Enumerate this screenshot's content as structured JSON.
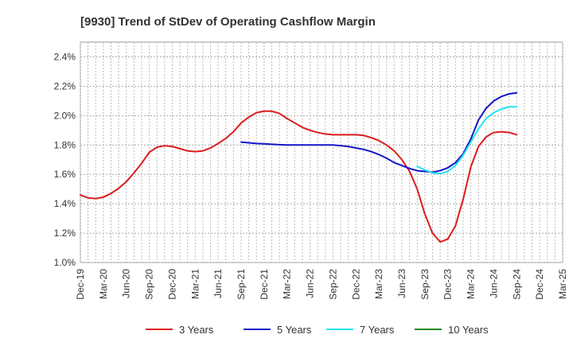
{
  "chart_data": {
    "type": "line",
    "title": "[9930]  Trend of StDev of Operating Cashflow Margin",
    "xlabel": "",
    "ylabel": "",
    "x_ticks": [
      "Dec-19",
      "Mar-20",
      "Jun-20",
      "Sep-20",
      "Dec-20",
      "Mar-21",
      "Jun-21",
      "Sep-21",
      "Dec-21",
      "Mar-22",
      "Jun-22",
      "Sep-22",
      "Dec-22",
      "Mar-23",
      "Jun-23",
      "Sep-23",
      "Dec-23",
      "Mar-24",
      "Jun-24",
      "Sep-24",
      "Dec-24",
      "Mar-25"
    ],
    "ylim": [
      1.0,
      2.5
    ],
    "y_ticks": [
      1.0,
      1.2,
      1.4,
      1.6,
      1.8,
      2.0,
      2.2,
      2.4
    ],
    "y_tick_labels": [
      "1.0%",
      "1.2%",
      "1.4%",
      "1.6%",
      "1.8%",
      "2.0%",
      "2.2%",
      "2.4%"
    ],
    "grid": true,
    "legend_position": "bottom",
    "series": [
      {
        "name": "3 Years",
        "color": "#dd1c1c",
        "x": [
          "2019-12",
          "2020-01",
          "2020-02",
          "2020-03",
          "2020-04",
          "2020-05",
          "2020-06",
          "2020-07",
          "2020-08",
          "2020-09",
          "2020-10",
          "2020-11",
          "2020-12",
          "2021-01",
          "2021-02",
          "2021-03",
          "2021-04",
          "2021-05",
          "2021-06",
          "2021-07",
          "2021-08",
          "2021-09",
          "2021-10",
          "2021-11",
          "2021-12",
          "2022-01",
          "2022-02",
          "2022-03",
          "2022-04",
          "2022-05",
          "2022-06",
          "2022-07",
          "2022-08",
          "2022-09",
          "2022-10",
          "2022-11",
          "2022-12",
          "2023-01",
          "2023-02",
          "2023-03",
          "2023-04",
          "2023-05",
          "2023-06",
          "2023-07",
          "2023-08",
          "2023-09",
          "2023-10",
          "2023-11",
          "2023-12",
          "2024-01",
          "2024-02",
          "2024-03",
          "2024-04",
          "2024-05",
          "2024-06",
          "2024-07",
          "2024-08",
          "2024-09"
        ],
        "values": [
          1.46,
          1.44,
          1.435,
          1.445,
          1.47,
          1.505,
          1.55,
          1.61,
          1.675,
          1.75,
          1.785,
          1.795,
          1.79,
          1.775,
          1.76,
          1.755,
          1.76,
          1.78,
          1.81,
          1.845,
          1.89,
          1.95,
          1.99,
          2.02,
          2.03,
          2.03,
          2.015,
          1.98,
          1.95,
          1.92,
          1.9,
          1.885,
          1.875,
          1.87,
          1.87,
          1.87,
          1.87,
          1.865,
          1.85,
          1.83,
          1.8,
          1.76,
          1.7,
          1.62,
          1.5,
          1.33,
          1.2,
          1.14,
          1.16,
          1.25,
          1.43,
          1.65,
          1.79,
          1.855,
          1.885,
          1.89,
          1.885,
          1.87
        ]
      },
      {
        "name": "5 Years",
        "color": "#1414c8",
        "x": [
          "2021-09",
          "2021-10",
          "2021-11",
          "2021-12",
          "2022-01",
          "2022-02",
          "2022-03",
          "2022-04",
          "2022-05",
          "2022-06",
          "2022-07",
          "2022-08",
          "2022-09",
          "2022-10",
          "2022-11",
          "2022-12",
          "2023-01",
          "2023-02",
          "2023-03",
          "2023-04",
          "2023-05",
          "2023-06",
          "2023-07",
          "2023-08",
          "2023-09",
          "2023-10",
          "2023-11",
          "2023-12",
          "2024-01",
          "2024-02",
          "2024-03",
          "2024-04",
          "2024-05",
          "2024-06",
          "2024-07",
          "2024-08",
          "2024-09"
        ],
        "values": [
          1.82,
          1.815,
          1.81,
          1.808,
          1.805,
          1.802,
          1.8,
          1.8,
          1.8,
          1.8,
          1.8,
          1.8,
          1.8,
          1.795,
          1.79,
          1.78,
          1.77,
          1.755,
          1.735,
          1.71,
          1.68,
          1.66,
          1.64,
          1.625,
          1.62,
          1.615,
          1.625,
          1.645,
          1.68,
          1.74,
          1.84,
          1.97,
          2.05,
          2.1,
          2.13,
          2.148,
          2.155
        ]
      },
      {
        "name": "7 Years",
        "color": "#22e6f0",
        "x": [
          "2023-08",
          "2023-09",
          "2023-10",
          "2023-11",
          "2023-12",
          "2024-01",
          "2024-02",
          "2024-03",
          "2024-04",
          "2024-05",
          "2024-06",
          "2024-07",
          "2024-08",
          "2024-09"
        ],
        "values": [
          1.655,
          1.63,
          1.61,
          1.605,
          1.62,
          1.66,
          1.73,
          1.82,
          1.91,
          1.98,
          2.02,
          2.045,
          2.06,
          2.06
        ]
      },
      {
        "name": "10 Years",
        "color": "#1a8a1a",
        "x": [],
        "values": []
      }
    ]
  }
}
